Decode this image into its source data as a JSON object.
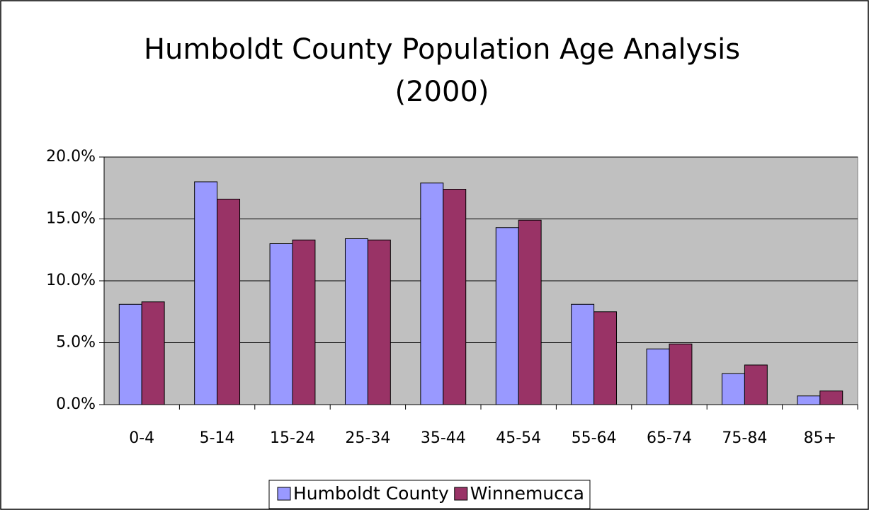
{
  "chart_data": {
    "type": "bar",
    "title": [
      "Humboldt County Population Age Analysis",
      "(2000)"
    ],
    "categories": [
      "0-4",
      "5-14",
      "15-24",
      "25-34",
      "35-44",
      "45-54",
      "55-64",
      "65-74",
      "75-84",
      "85+"
    ],
    "series": [
      {
        "name": "Humboldt County",
        "color": "#9999ff",
        "values": [
          8.1,
          18.0,
          13.0,
          13.4,
          17.9,
          14.3,
          8.1,
          4.5,
          2.5,
          0.7
        ]
      },
      {
        "name": "Winnemucca",
        "color": "#993366",
        "values": [
          8.3,
          16.6,
          13.3,
          13.3,
          17.4,
          14.9,
          7.5,
          4.9,
          3.2,
          1.1
        ]
      }
    ],
    "ylim": [
      0,
      20
    ],
    "yticks": [
      {
        "value": 0,
        "label": "0.0%"
      },
      {
        "value": 5,
        "label": "5.0%"
      },
      {
        "value": 10,
        "label": "10.0%"
      },
      {
        "value": 15,
        "label": "15.0%"
      },
      {
        "value": 20,
        "label": "20.0%"
      }
    ],
    "grid": true,
    "legend": "bottom"
  }
}
